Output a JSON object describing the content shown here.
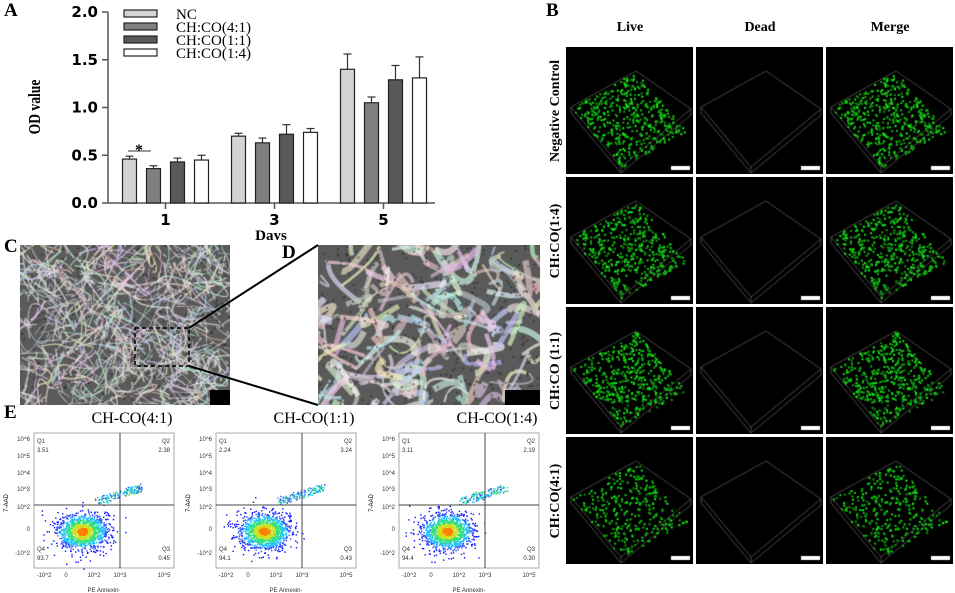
{
  "panels": {
    "a": "A",
    "b": "B",
    "c": "C",
    "d": "D",
    "e": "E"
  },
  "chart_data": {
    "type": "bar",
    "categories": [
      "1",
      "3",
      "5"
    ],
    "xlabel": "Days",
    "ylabel": "OD value",
    "ylim": [
      0,
      2.0
    ],
    "yticks": [
      "0.0",
      "0.5",
      "1.0",
      "1.5",
      "2.0"
    ],
    "legend_position": "top-left",
    "series": [
      {
        "name": "NC",
        "color": "#d3d3d3",
        "values": [
          0.46,
          0.7,
          1.4
        ],
        "errors": [
          0.03,
          0.03,
          0.16
        ]
      },
      {
        "name": "CH:CO(4:1)",
        "color": "#808080",
        "values": [
          0.36,
          0.63,
          1.05
        ],
        "errors": [
          0.03,
          0.05,
          0.06
        ]
      },
      {
        "name": "CH:CO(1:1)",
        "color": "#595959",
        "values": [
          0.43,
          0.72,
          1.29
        ],
        "errors": [
          0.04,
          0.1,
          0.15
        ]
      },
      {
        "name": "CH:CO(1:4)",
        "color": "#ffffff",
        "values": [
          0.45,
          0.74,
          1.31
        ],
        "errors": [
          0.05,
          0.04,
          0.22
        ]
      }
    ],
    "annotations": [
      {
        "text": "*",
        "between": [
          "NC",
          "CH:CO(4:1)"
        ],
        "category": "1"
      }
    ]
  },
  "live_dead": {
    "columns": [
      "Live",
      "Dead",
      "Merge"
    ],
    "rows": [
      "Negative Control",
      "CH:CO(1:4)",
      "CH:CO (1:1)",
      "CH:CO(4:1)"
    ]
  },
  "flow": {
    "xlabel": "PE Annexin-",
    "ylabel": "7-AAD",
    "yticks": [
      "10^6",
      "10^5",
      "10^4",
      "10^3",
      "10^2",
      "0",
      "-10^2"
    ],
    "xticks": [
      "-10^2",
      "0",
      "10^2",
      "10^3",
      "10^5"
    ],
    "plots": [
      {
        "title": "CH-CO(4:1)",
        "q1": "3.51",
        "q2": "2.38",
        "q3": "0.45",
        "q4": "93.7"
      },
      {
        "title": "CH-CO(1:1)",
        "q1": "2.24",
        "q2": "3.24",
        "q3": "0.43",
        "q4": "94.1"
      },
      {
        "title": "CH-CO(1:4)",
        "q1": "3.11",
        "q2": "2.19",
        "q3": "0.30",
        "q4": "94.4"
      }
    ],
    "quadrants": [
      "Q1",
      "Q2",
      "Q3",
      "Q4"
    ]
  }
}
